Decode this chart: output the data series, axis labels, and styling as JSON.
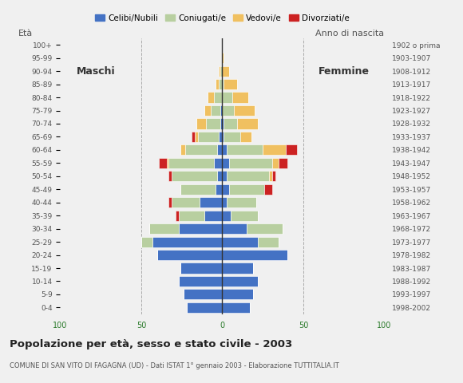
{
  "age_groups": [
    "0-4",
    "5-9",
    "10-14",
    "15-19",
    "20-24",
    "25-29",
    "30-34",
    "35-39",
    "40-44",
    "45-49",
    "50-54",
    "55-59",
    "60-64",
    "65-69",
    "70-74",
    "75-79",
    "80-84",
    "85-89",
    "90-94",
    "95-99",
    "100+"
  ],
  "birth_years": [
    "1998-2002",
    "1993-1997",
    "1988-1992",
    "1983-1987",
    "1978-1982",
    "1973-1977",
    "1968-1972",
    "1963-1967",
    "1958-1962",
    "1953-1957",
    "1948-1952",
    "1943-1947",
    "1938-1942",
    "1933-1937",
    "1928-1932",
    "1923-1927",
    "1918-1922",
    "1913-1917",
    "1908-1912",
    "1903-1907",
    "1902 o prima"
  ],
  "males": {
    "celibi": [
      22,
      24,
      27,
      26,
      40,
      43,
      27,
      11,
      14,
      4,
      3,
      5,
      3,
      2,
      1,
      1,
      0,
      0,
      0,
      0,
      0
    ],
    "coniugati": [
      0,
      0,
      0,
      0,
      0,
      7,
      18,
      16,
      17,
      22,
      28,
      28,
      20,
      13,
      9,
      6,
      5,
      2,
      1,
      0,
      0
    ],
    "vedovi": [
      0,
      0,
      0,
      0,
      0,
      0,
      0,
      0,
      0,
      0,
      0,
      1,
      3,
      2,
      6,
      4,
      4,
      2,
      1,
      0,
      0
    ],
    "divorziati": [
      0,
      0,
      0,
      0,
      0,
      0,
      0,
      2,
      2,
      0,
      2,
      5,
      0,
      2,
      0,
      0,
      0,
      0,
      0,
      0,
      0
    ]
  },
  "females": {
    "nubili": [
      17,
      19,
      22,
      19,
      40,
      22,
      15,
      5,
      3,
      4,
      3,
      4,
      3,
      1,
      1,
      0,
      0,
      0,
      0,
      0,
      0
    ],
    "coniugate": [
      0,
      0,
      0,
      0,
      0,
      13,
      22,
      17,
      18,
      22,
      26,
      27,
      22,
      10,
      8,
      7,
      6,
      1,
      0,
      0,
      0
    ],
    "vedove": [
      0,
      0,
      0,
      0,
      0,
      0,
      0,
      0,
      0,
      0,
      2,
      4,
      14,
      7,
      13,
      13,
      10,
      8,
      4,
      1,
      0
    ],
    "divorziate": [
      0,
      0,
      0,
      0,
      0,
      0,
      0,
      0,
      0,
      5,
      2,
      5,
      7,
      0,
      0,
      0,
      0,
      0,
      0,
      0,
      0
    ]
  },
  "colors": {
    "celibi": "#4472c4",
    "coniugati": "#b8cfa0",
    "vedovi": "#f0c060",
    "divorziati": "#cc2222"
  },
  "xlim": 100,
  "title": "Popolazione per età, sesso e stato civile - 2003",
  "subtitle": "COMUNE DI SAN VITO DI FAGAGNA (UD) - Dati ISTAT 1° gennaio 2003 - Elaborazione TUTTITALIA.IT",
  "ylabel_left": "Età",
  "ylabel_right": "Anno di nascita",
  "xlabel_color": "#2a7a2a",
  "legend_labels": [
    "Celibi/Nubili",
    "Coniugati/e",
    "Vedovi/e",
    "Divorziati/e"
  ],
  "label_maschi": "Maschi",
  "label_femmine": "Femmine",
  "bg_color": "#f0f0f0"
}
